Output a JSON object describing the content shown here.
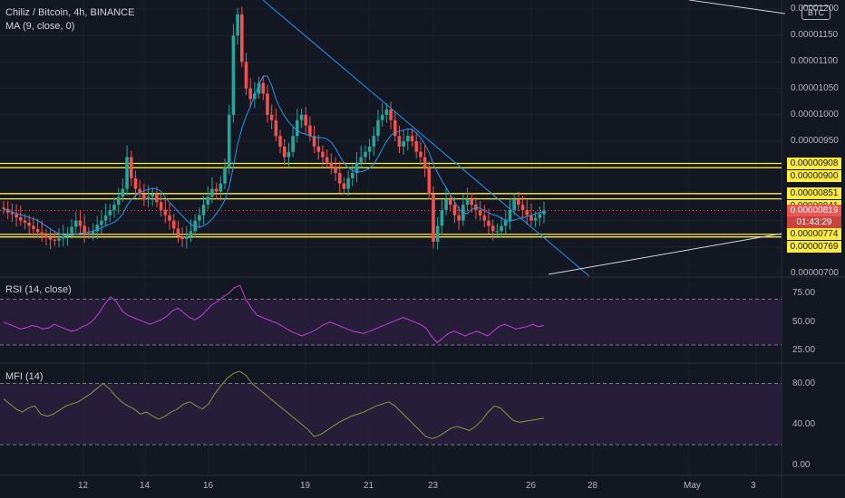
{
  "header": {
    "symbol_line": "Chiliz / Bitcoin, 4h, BINANCE",
    "ma_line": "MA (9, close, 0)",
    "currency_badge": "BTC"
  },
  "colors": {
    "background": "#131722",
    "up_candle": "#26a69a",
    "down_candle": "#ef5350",
    "ma_line": "#2196f3",
    "trendline": "#2196f3",
    "support_resistance": "#ffeb3b",
    "rsi_line": "#c13ed6",
    "mfi_line": "#7e9b3a",
    "indicator_band": "#2a1f3d",
    "grid": "#1e222d"
  },
  "price_axis": {
    "ticks": [
      "0.00001200",
      "0.00001150",
      "0.00001100",
      "0.00001050",
      "0.00001000",
      "0.00000950",
      "0.00000700"
    ],
    "highlight_levels": [
      "0.00000908",
      "0.00000900",
      "0.00000851",
      "0.00000841",
      "0.00000774",
      "0.00000769"
    ],
    "last_price": "0.00000819",
    "countdown": "01:43:29"
  },
  "time_axis": {
    "labels": [
      "12",
      "14",
      "16",
      "19",
      "21",
      "23",
      "26",
      "28",
      "May",
      "3"
    ]
  },
  "rsi": {
    "title": "RSI (14, close)",
    "ticks": [
      "75.00",
      "50.00",
      "25.00"
    ]
  },
  "mfi": {
    "title": "MFI (14)",
    "ticks": [
      "80.00",
      "40.00",
      "0.00"
    ]
  },
  "chart_data": [
    {
      "type": "candlestick",
      "title": "Chiliz / Bitcoin, 4h, BINANCE",
      "x_range": [
        "Apr 10",
        "May 3"
      ],
      "ylim": [
        6.8e-06,
        1.22e-05
      ],
      "horizontal_levels": [
        9.08e-06,
        9e-06,
        8.51e-06,
        8.41e-06,
        7.74e-06,
        7.69e-06
      ],
      "last_price": 8.19e-06,
      "close_series_approx": [
        8.22e-06,
        8.15e-06,
        8.12e-06,
        8.06e-06,
        8e-06,
        7.96e-06,
        7.9e-06,
        7.84e-06,
        7.78e-06,
        7.72e-06,
        7.68e-06,
        7.64e-06,
        7.62e-06,
        7.66e-06,
        7.7e-06,
        7.76e-06,
        7.88e-06,
        8e-06,
        7.9e-06,
        7.76e-06,
        7.75e-06,
        7.8e-06,
        7.92e-06,
        8e-06,
        8.1e-06,
        8.2e-06,
        8.3e-06,
        8.45e-06,
        8.6e-06,
        9.2e-06,
        8.8e-06,
        8.6e-06,
        8.5e-06,
        8.4e-06,
        8.45e-06,
        8.5e-06,
        8.35e-06,
        8.2e-06,
        8.1e-06,
        8e-06,
        7.85e-06,
        7.7e-06,
        7.65e-06,
        7.7e-06,
        7.8e-06,
        8e-06,
        8.1e-06,
        8.3e-06,
        8.45e-06,
        8.6e-06,
        8.55e-06,
        8.7e-06,
        9e-06,
        1e-05,
        1.15e-05,
        1.19e-05,
        1.1e-05,
        1.05e-05,
        1.03e-05,
        1.04e-05,
        1.06e-05,
        1.04e-05,
        1e-05,
        9.9e-06,
        9.6e-06,
        9.4e-06,
        9.2e-06,
        9.3e-06,
        9.6e-06,
        9.9e-06,
        1e-05,
        9.8e-06,
        9.6e-06,
        9.4e-06,
        9.3e-06,
        9.2e-06,
        9.1e-06,
        9e-06,
        8.9e-06,
        8.7e-06,
        8.6e-06,
        8.8e-06,
        8.9e-06,
        9.1e-06,
        9.2e-06,
        9.3e-06,
        9.4e-06,
        9.6e-06,
        9.9e-06,
        1e-05,
        1.01e-05,
        9.9e-06,
        9.6e-06,
        9.4e-06,
        9.5e-06,
        9.6e-06,
        9.5e-06,
        9.3e-06,
        9.2e-06,
        9e-06,
        8.5e-06,
        7.6e-06,
        7.9e-06,
        8.2e-06,
        8.4e-06,
        8.3e-06,
        8.1e-06,
        8e-06,
        8.3e-06,
        8.4e-06,
        8.3e-06,
        8.2e-06,
        8.1e-06,
        8e-06,
        7.9e-06,
        7.8e-06,
        7.8e-06,
        7.9e-06,
        8e-06,
        8.2e-06,
        8.4e-06,
        8.3e-06,
        8.2e-06,
        8.1e-06,
        8e-06,
        8.05e-06,
        8.12e-06,
        8.19e-06
      ]
    },
    {
      "type": "line",
      "title": "RSI (14, close)",
      "ylim": [
        15,
        90
      ],
      "reference_lines": [
        70,
        30
      ],
      "values_approx": [
        50,
        48,
        46,
        44,
        45,
        47,
        46,
        44,
        45,
        48,
        46,
        44,
        42,
        43,
        46,
        48,
        52,
        58,
        66,
        72,
        68,
        60,
        56,
        54,
        52,
        50,
        48,
        50,
        52,
        55,
        60,
        62,
        58,
        54,
        52,
        55,
        60,
        65,
        68,
        72,
        75,
        80,
        82,
        70,
        62,
        56,
        54,
        52,
        50,
        48,
        45,
        42,
        40,
        38,
        40,
        42,
        45,
        48,
        50,
        48,
        46,
        44,
        42,
        41,
        40,
        42,
        44,
        46,
        48,
        50,
        52,
        54,
        52,
        50,
        48,
        45,
        38,
        32,
        36,
        40,
        42,
        40,
        38,
        40,
        42,
        40,
        38,
        42,
        46,
        48,
        46,
        44,
        45,
        46,
        48,
        46,
        47
      ]
    },
    {
      "type": "line",
      "title": "MFI (14)",
      "ylim": [
        -10,
        100
      ],
      "reference_lines": [
        80,
        20
      ],
      "values_approx": [
        65,
        60,
        55,
        52,
        56,
        58,
        50,
        48,
        50,
        54,
        58,
        60,
        62,
        66,
        70,
        75,
        80,
        75,
        68,
        62,
        58,
        55,
        50,
        52,
        48,
        45,
        48,
        52,
        55,
        60,
        62,
        58,
        55,
        60,
        70,
        78,
        85,
        90,
        92,
        88,
        80,
        75,
        70,
        65,
        60,
        55,
        50,
        45,
        40,
        35,
        28,
        30,
        34,
        38,
        42,
        45,
        48,
        50,
        52,
        55,
        58,
        60,
        62,
        58,
        52,
        46,
        40,
        34,
        28,
        26,
        28,
        32,
        36,
        38,
        36,
        34,
        38,
        44,
        52,
        58,
        56,
        50,
        44,
        42,
        43,
        44,
        45,
        46
      ]
    }
  ]
}
